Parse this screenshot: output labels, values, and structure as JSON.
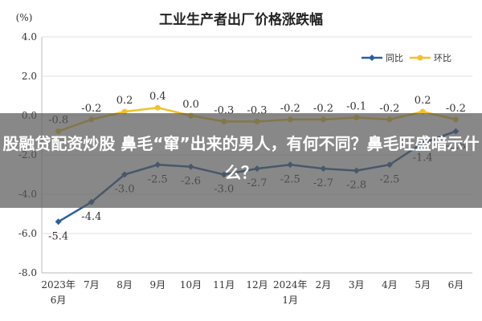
{
  "chart_data": {
    "type": "line",
    "title": "工业生产者出厂价格涨跌幅",
    "ylabel": "(%)",
    "ylim": [
      -8.0,
      4.0
    ],
    "yticks": [
      "4.0",
      "2.0",
      "0.0",
      "-2.0",
      "-4.0",
      "-6.0",
      "-8.0"
    ],
    "categories": [
      [
        "2023年",
        "6月"
      ],
      [
        "7月"
      ],
      [
        "8月"
      ],
      [
        "9月"
      ],
      [
        "10月"
      ],
      [
        "11月"
      ],
      [
        "12月"
      ],
      [
        "2024年",
        "1月"
      ],
      [
        "2月"
      ],
      [
        "3月"
      ],
      [
        "4月"
      ],
      [
        "5月"
      ],
      [
        "6月"
      ]
    ],
    "grid": true,
    "legend_position": "top-right",
    "series": [
      {
        "name": "同比",
        "color": "#2b5f9e",
        "values": [
          -5.4,
          -4.4,
          -3.0,
          -2.5,
          -2.6,
          -3.0,
          -2.7,
          -2.5,
          -2.7,
          -2.8,
          -2.5,
          -1.4,
          -0.8
        ],
        "labels": [
          "-5.4",
          "-4.4",
          "-3.0",
          "-2.5",
          "-2.6",
          "-3.0",
          "-2.7",
          "-2.5",
          "-2.7",
          "-2.8",
          "-2.5",
          "-1.4",
          "-0.8"
        ]
      },
      {
        "name": "环比",
        "color": "#f2c12e",
        "values": [
          -0.8,
          -0.2,
          0.2,
          0.4,
          0.0,
          -0.3,
          -0.3,
          -0.2,
          -0.2,
          -0.1,
          -0.2,
          0.2,
          -0.2
        ],
        "labels": [
          "-0.8",
          "-0.2",
          "0.2",
          "0.4",
          "0.0",
          "-0.3",
          "-0.3",
          "-0.2",
          "-0.2",
          "-0.1",
          "-0.2",
          "0.2",
          "-0.2"
        ]
      }
    ]
  },
  "overlay": {
    "headline": "股融贷配资炒股 鼻毛“窜”出来的男人，有何不同？鼻毛旺盛暗示什么？",
    "background": "#555555"
  }
}
